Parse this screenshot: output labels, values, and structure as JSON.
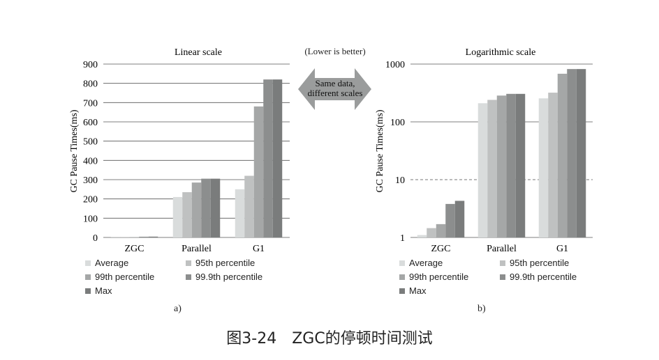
{
  "header_note": "(Lower is better)",
  "arrow_text": [
    "Same data,",
    "different scales"
  ],
  "caption": "图3-24　ZGC的停顿时间测试",
  "legend": [
    {
      "label": "Average",
      "color": "#d9dcdc"
    },
    {
      "label": "95th percentile",
      "color": "#bfc1c1"
    },
    {
      "label": "99th percentile",
      "color": "#a5a7a7"
    },
    {
      "label": "99.9th percentile",
      "color": "#8c8e8e"
    },
    {
      "label": "Max",
      "color": "#7a7c7c"
    }
  ],
  "chart_data": [
    {
      "type": "bar",
      "title": "Linear scale",
      "panel_label": "a)",
      "ylabel": "GC Pause Times(ms)",
      "xlabel": "",
      "ylim": [
        0,
        900
      ],
      "yscale": "linear",
      "yticks": [
        "0",
        "100",
        "200",
        "300",
        "400",
        "500",
        "600",
        "700",
        "800",
        "900"
      ],
      "categories": [
        "ZGC",
        "Parallel",
        "G1"
      ],
      "grid": true,
      "series": [
        {
          "name": "Average",
          "values": [
            1,
            210,
            250
          ]
        },
        {
          "name": "95th percentile",
          "values": [
            1.5,
            235,
            320
          ]
        },
        {
          "name": "99th percentile",
          "values": [
            1.7,
            285,
            680
          ]
        },
        {
          "name": "99.9th percentile",
          "values": [
            3.8,
            305,
            820
          ]
        },
        {
          "name": "Max",
          "values": [
            4.3,
            305,
            820
          ]
        }
      ]
    },
    {
      "type": "bar",
      "title": "Logarithmic scale",
      "panel_label": "b)",
      "ylabel": "GC Pause Times(ms)",
      "xlabel": "",
      "ylim": [
        1,
        1000
      ],
      "yscale": "log",
      "yticks": [
        "1",
        "10",
        "100",
        "1000"
      ],
      "categories": [
        "ZGC",
        "Parallel",
        "G1"
      ],
      "grid": true,
      "series": [
        {
          "name": "Average",
          "values": [
            1.1,
            210,
            255
          ]
        },
        {
          "name": "95th percentile",
          "values": [
            1.45,
            240,
            320
          ]
        },
        {
          "name": "99th percentile",
          "values": [
            1.7,
            285,
            680
          ]
        },
        {
          "name": "99.9th percentile",
          "values": [
            3.8,
            305,
            820
          ]
        },
        {
          "name": "Max",
          "values": [
            4.3,
            305,
            820
          ]
        }
      ]
    }
  ]
}
